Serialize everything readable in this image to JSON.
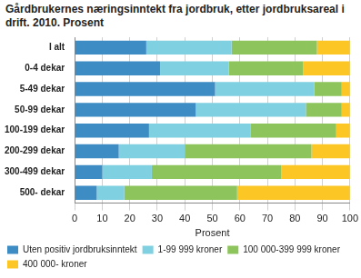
{
  "chart_data": {
    "type": "bar",
    "orientation": "horizontal",
    "stacked": true,
    "title": "Gårdbrukernes næringsinntekt fra jordbruk, etter jordbruksareal i drift. 2010. Prosent",
    "x_label": "Prosent",
    "categories": [
      "I alt",
      "0-4 dekar",
      "5-49 dekar",
      "50-99 dekar",
      "100-199 dekar",
      "200-299 dekar",
      "300-499 dekar",
      "500- dekar"
    ],
    "series": [
      {
        "name": "Uten positiv jordbruksinntekt",
        "color": "#3d8cc4",
        "values": [
          26,
          31,
          51,
          44,
          27,
          16,
          10,
          8
        ]
      },
      {
        "name": "1-99 999 kroner",
        "color": "#7fd0e0",
        "values": [
          31,
          25,
          36,
          40,
          37,
          24,
          18,
          10
        ]
      },
      {
        "name": "100 000-399 999 kroner",
        "color": "#8dc45c",
        "values": [
          31,
          27,
          10,
          13,
          31,
          46,
          47,
          41
        ]
      },
      {
        "name": "400 000- kroner",
        "color": "#fcc624",
        "values": [
          12,
          17,
          3,
          3,
          5,
          14,
          25,
          41
        ]
      }
    ],
    "xlim": [
      0,
      100
    ],
    "xticks": [
      0,
      10,
      20,
      30,
      40,
      50,
      60,
      70,
      80,
      90,
      100
    ],
    "grid": true,
    "legend": "bottom"
  }
}
